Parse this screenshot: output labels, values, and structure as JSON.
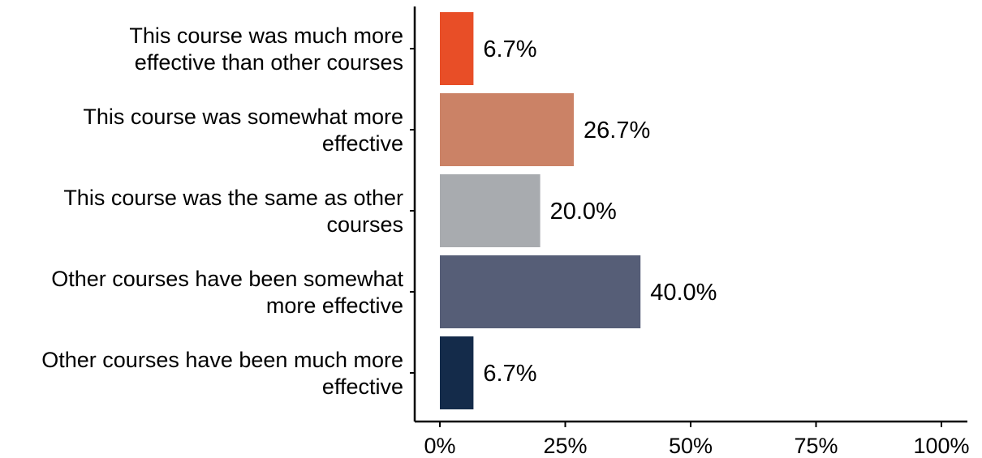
{
  "chart_data": {
    "type": "bar",
    "orientation": "horizontal",
    "title": "",
    "xlabel": "",
    "ylabel": "",
    "categories": [
      [
        "This course was much more",
        "effective than other courses"
      ],
      [
        "This course was somewhat more",
        "effective"
      ],
      [
        "This course was the same as other",
        "courses"
      ],
      [
        "Other courses have been somewhat",
        "more effective"
      ],
      [
        "Other courses have been much more",
        "effective"
      ]
    ],
    "values": [
      6.7,
      26.7,
      20.0,
      40.0,
      6.7
    ],
    "value_labels": [
      "6.7%",
      "26.7%",
      "20.0%",
      "40.0%",
      "6.7%"
    ],
    "colors": [
      "#e84e27",
      "#cb8266",
      "#a8abaf",
      "#565e77",
      "#142b4a"
    ],
    "xlim": [
      0,
      100
    ],
    "x_ticks": [
      0,
      25,
      50,
      75,
      100
    ],
    "x_tick_labels": [
      "0%",
      "25%",
      "50%",
      "75%",
      "100%"
    ],
    "grid": false,
    "legend": "none"
  }
}
